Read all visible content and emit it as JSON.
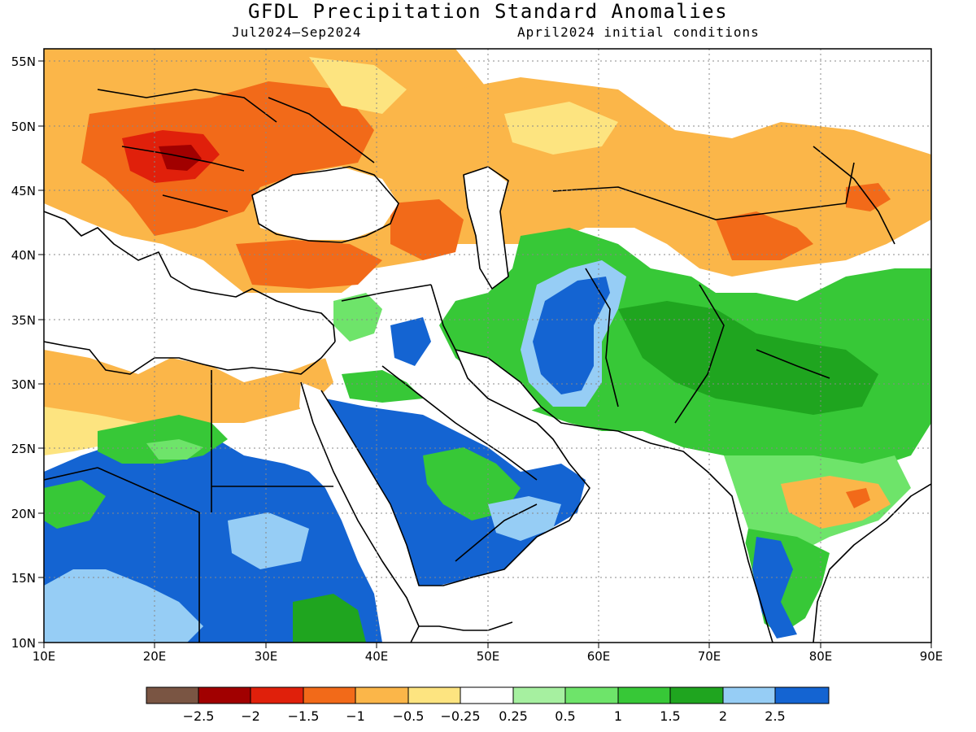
{
  "title": "GFDL Precipitation Standard Anomalies",
  "subtitle_left": "Jul2024—Sep2024",
  "subtitle_right": "April2024 initial conditions",
  "map": {
    "lon_range": [
      10,
      90
    ],
    "lat_range": [
      10,
      56
    ],
    "x_ticks": [
      "10E",
      "20E",
      "30E",
      "40E",
      "50E",
      "60E",
      "70E",
      "80E",
      "90E"
    ],
    "y_ticks": [
      "10N",
      "15N",
      "20N",
      "25N",
      "30N",
      "35N",
      "40N",
      "45N",
      "50N",
      "55N"
    ],
    "grid": "dotted",
    "colors": {
      "water": "#ffffff",
      "border": "#000000"
    }
  },
  "legend": {
    "colors": [
      "#7a5543",
      "#a10000",
      "#e0200b",
      "#f26a19",
      "#fbb649",
      "#fde480",
      "#ffffff",
      "#a6f0a0",
      "#6ee46a",
      "#37c837",
      "#1fa51f",
      "#96cdf5",
      "#1464d2"
    ],
    "labels": [
      "−2.5",
      "−2",
      "−1.5",
      "−1",
      "−0.5",
      "−0.25",
      "0.25",
      "0.5",
      "1",
      "1.5",
      "2",
      "2.5"
    ]
  }
}
